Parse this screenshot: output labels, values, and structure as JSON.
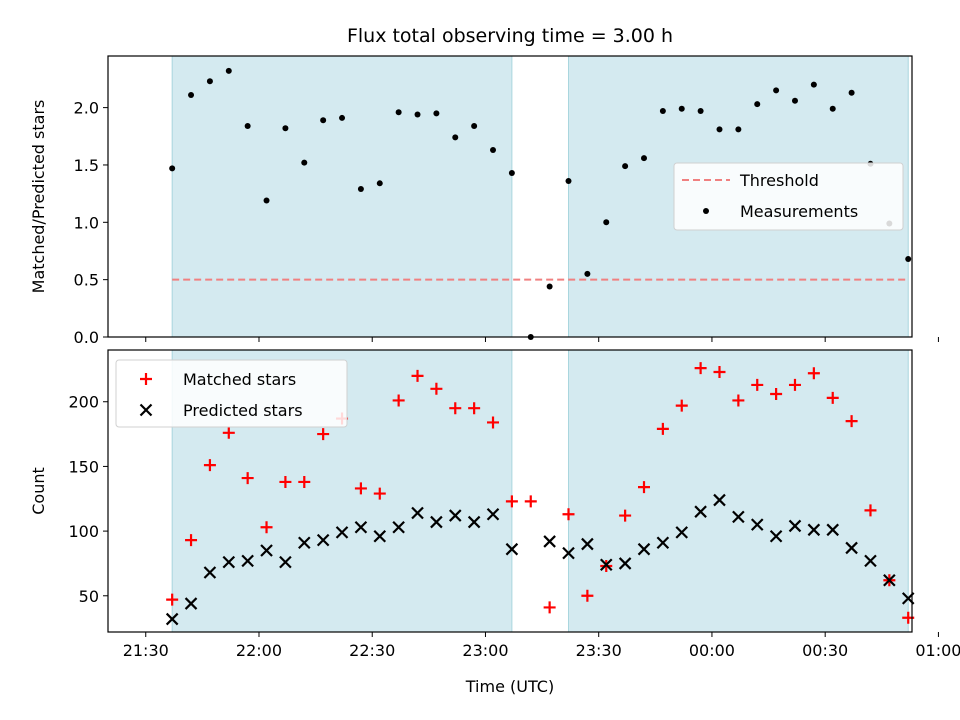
{
  "chart_data": {
    "type": "scatter",
    "title": "Flux total observing time = 3.00 h",
    "xlabel": "Time (UTC)",
    "x_ticks": [
      "21:30",
      "22:00",
      "22:30",
      "23:00",
      "23:30",
      "00:00",
      "00:30",
      "01:00"
    ],
    "x_range_minutes": [
      -10,
      203
    ],
    "shaded_intervals": [
      [
        "21:37",
        "23:07"
      ],
      [
        "23:22",
        "00:52"
      ]
    ],
    "shade_color": "#d4eaf0",
    "panels": [
      {
        "ylabel": "Matched/Predicted stars",
        "ylim": [
          0,
          2.45
        ],
        "yticks": [
          "0.0",
          "0.5",
          "1.0",
          "1.5",
          "2.0"
        ],
        "threshold": {
          "name": "Threshold",
          "value": 0.5,
          "color": "#f08080",
          "x_range": [
            "21:37",
            "00:52"
          ]
        },
        "legend": {
          "position": "center-right"
        },
        "series": [
          {
            "name": "Measurements",
            "marker": "dot",
            "color": "#000000",
            "x": [
              "21:37",
              "21:42",
              "21:47",
              "21:52",
              "21:57",
              "22:02",
              "22:07",
              "22:12",
              "22:17",
              "22:22",
              "22:27",
              "22:32",
              "22:37",
              "22:42",
              "22:47",
              "22:52",
              "22:57",
              "23:02",
              "23:07",
              "23:12",
              "23:17",
              "23:22",
              "23:27",
              "23:32",
              "23:37",
              "23:42",
              "23:47",
              "23:52",
              "23:57",
              "00:02",
              "00:07",
              "00:12",
              "00:17",
              "00:22",
              "00:27",
              "00:32",
              "00:37",
              "00:42",
              "00:47",
              "00:52"
            ],
            "y": [
              1.47,
              2.11,
              2.23,
              2.32,
              1.84,
              1.19,
              1.82,
              1.52,
              1.89,
              1.91,
              1.29,
              1.34,
              1.96,
              1.94,
              1.95,
              1.74,
              1.84,
              1.63,
              1.43,
              0.0,
              0.44,
              1.36,
              0.55,
              1.0,
              1.49,
              1.56,
              1.97,
              1.99,
              1.97,
              1.81,
              1.81,
              2.03,
              2.15,
              2.06,
              2.2,
              1.99,
              2.13,
              1.51,
              0.99,
              0.68
            ]
          }
        ]
      },
      {
        "ylabel": "Count",
        "ylim": [
          22,
          240
        ],
        "yticks": [
          "50",
          "100",
          "150",
          "200"
        ],
        "legend": {
          "position": "upper-left"
        },
        "series": [
          {
            "name": "Matched stars",
            "marker": "plus",
            "color": "#ff0000",
            "x": [
              "21:37",
              "21:42",
              "21:47",
              "21:52",
              "21:57",
              "22:02",
              "22:07",
              "22:12",
              "22:17",
              "22:22",
              "22:27",
              "22:32",
              "22:37",
              "22:42",
              "22:47",
              "22:52",
              "22:57",
              "23:02",
              "23:07",
              "23:12",
              "23:17",
              "23:22",
              "23:27",
              "23:32",
              "23:37",
              "23:42",
              "23:47",
              "23:52",
              "23:57",
              "00:02",
              "00:07",
              "00:12",
              "00:17",
              "00:22",
              "00:27",
              "00:32",
              "00:37",
              "00:42",
              "00:47",
              "00:52"
            ],
            "y": [
              47,
              93,
              151,
              176,
              141,
              103,
              138,
              138,
              175,
              187,
              133,
              129,
              201,
              220,
              210,
              195,
              195,
              184,
              123,
              123,
              41,
              113,
              50,
              73,
              112,
              134,
              179,
              197,
              226,
              223,
              201,
              213,
              206,
              213,
              222,
              203,
              185,
              116,
              62,
              33
            ]
          },
          {
            "name": "Predicted stars",
            "marker": "cross",
            "color": "#000000",
            "x": [
              "21:37",
              "21:42",
              "21:47",
              "21:52",
              "21:57",
              "22:02",
              "22:07",
              "22:12",
              "22:17",
              "22:22",
              "22:27",
              "22:32",
              "22:37",
              "22:42",
              "22:47",
              "22:52",
              "22:57",
              "23:02",
              "23:07",
              "23:17",
              "23:22",
              "23:27",
              "23:32",
              "23:37",
              "23:42",
              "23:47",
              "23:52",
              "23:57",
              "00:02",
              "00:07",
              "00:12",
              "00:17",
              "00:22",
              "00:27",
              "00:32",
              "00:37",
              "00:42",
              "00:47",
              "00:52"
            ],
            "y": [
              32,
              44,
              68,
              76,
              77,
              85,
              76,
              91,
              93,
              99,
              103,
              96,
              103,
              114,
              107,
              112,
              107,
              113,
              86,
              92,
              83,
              90,
              74,
              75,
              86,
              91,
              99,
              115,
              124,
              111,
              105,
              96,
              104,
              101,
              101,
              87,
              77,
              62,
              48
            ]
          }
        ]
      }
    ]
  }
}
